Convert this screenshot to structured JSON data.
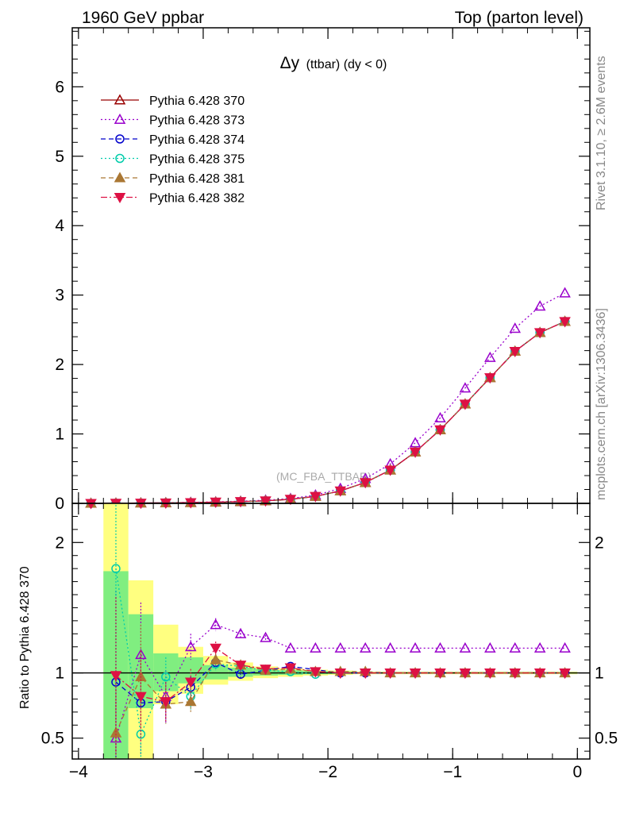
{
  "header": {
    "left": "1960 GeV ppbar",
    "right": "Top (parton level)"
  },
  "side": {
    "rivet": "Rivet 3.1.10, ≥ 2.6M events",
    "mcplots": "mcplots.cern.ch [arXiv:1306.3436]"
  },
  "chart_data": [
    {
      "type": "line",
      "title": "Δy (ttbar) (dy < 0)",
      "title_main": "Δy",
      "title_sub": "(ttbar) (dy < 0)",
      "watermark": "(MC_FBA_TTBAR)",
      "xlim": [
        -4.05,
        0.1
      ],
      "ylim": [
        0,
        6.85
      ],
      "yticks": [
        0,
        1,
        2,
        3,
        4,
        5,
        6
      ],
      "yticklabels": [
        "0",
        "1",
        "2",
        "3",
        "4",
        "5",
        "6"
      ],
      "legend_position": "top-left",
      "x": [
        -3.9,
        -3.7,
        -3.5,
        -3.3,
        -3.1,
        -2.9,
        -2.7,
        -2.5,
        -2.3,
        -2.1,
        -1.9,
        -1.7,
        -1.5,
        -1.3,
        -1.1,
        -0.9,
        -0.7,
        -0.5,
        -0.3,
        -0.1
      ],
      "series": [
        {
          "name": "Pythia 6.428 370",
          "color": "#990000",
          "marker": "triangle-open",
          "dash": "",
          "values": [
            0.0,
            0.002,
            0.005,
            0.008,
            0.012,
            0.016,
            0.024,
            0.036,
            0.058,
            0.1,
            0.18,
            0.3,
            0.48,
            0.74,
            1.06,
            1.43,
            1.81,
            2.19,
            2.46,
            2.62
          ]
        },
        {
          "name": "Pythia 6.428 373",
          "color": "#9900cc",
          "marker": "triangle-open",
          "dash": "2,3",
          "values": [
            0.0,
            0.002,
            0.006,
            0.008,
            0.014,
            0.022,
            0.031,
            0.046,
            0.069,
            0.119,
            0.214,
            0.356,
            0.567,
            0.871,
            1.23,
            1.66,
            2.1,
            2.52,
            2.84,
            3.03
          ]
        },
        {
          "name": "Pythia 6.428 374",
          "color": "#0000cc",
          "marker": "circle-open",
          "dash": "6,4",
          "values": [
            0.0,
            0.002,
            0.004,
            0.006,
            0.011,
            0.017,
            0.024,
            0.037,
            0.06,
            0.1,
            0.18,
            0.3,
            0.48,
            0.74,
            1.06,
            1.43,
            1.81,
            2.19,
            2.46,
            2.62
          ]
        },
        {
          "name": "Pythia 6.428 375",
          "color": "#00ccaa",
          "marker": "circle-open",
          "dash": "2,3",
          "values": [
            0.0,
            0.004,
            0.003,
            0.008,
            0.01,
            0.017,
            0.025,
            0.037,
            0.059,
            0.099,
            0.18,
            0.3,
            0.48,
            0.74,
            1.06,
            1.43,
            1.81,
            2.19,
            2.46,
            2.62
          ]
        },
        {
          "name": "Pythia 6.428 381",
          "color": "#aa7733",
          "marker": "triangle-filled",
          "dash": "6,4",
          "values": [
            0.0,
            0.001,
            0.005,
            0.006,
            0.009,
            0.018,
            0.026,
            0.037,
            0.059,
            0.1,
            0.18,
            0.3,
            0.48,
            0.74,
            1.06,
            1.43,
            1.81,
            2.19,
            2.46,
            2.62
          ]
        },
        {
          "name": "Pythia 6.428 382",
          "color": "#dd1144",
          "marker": "triangle-down-filled",
          "dash": "8,3,2,3",
          "values": [
            0.0,
            0.002,
            0.004,
            0.006,
            0.011,
            0.019,
            0.026,
            0.037,
            0.06,
            0.101,
            0.18,
            0.3,
            0.48,
            0.74,
            1.06,
            1.43,
            1.81,
            2.19,
            2.46,
            2.62
          ]
        }
      ]
    },
    {
      "type": "line",
      "ylabel": "Ratio to Pythia 6.428 370",
      "xlim": [
        -4.05,
        0.1
      ],
      "ylim": [
        0.34,
        2.3
      ],
      "xticks": [
        -4,
        -3,
        -2,
        -1,
        0
      ],
      "xticklabels": [
        "−4",
        "−3",
        "−2",
        "−1",
        "0"
      ],
      "yticks": [
        0.5,
        1,
        2
      ],
      "yticklabels": [
        "0.5",
        "1",
        "2"
      ],
      "bands": [
        {
          "x0": -3.8,
          "x1": -3.6,
          "green": [
            0.34,
            1.78
          ],
          "yellow": [
            0.34,
            2.3
          ]
        },
        {
          "x0": -3.6,
          "x1": -3.4,
          "green": [
            0.73,
            1.45
          ],
          "yellow": [
            0.34,
            1.71
          ]
        },
        {
          "x0": -3.4,
          "x1": -3.2,
          "green": [
            0.86,
            1.15
          ],
          "yellow": [
            0.76,
            1.37
          ]
        },
        {
          "x0": -3.2,
          "x1": -3.0,
          "green": [
            0.92,
            1.12
          ],
          "yellow": [
            0.84,
            1.2
          ]
        },
        {
          "x0": -3.0,
          "x1": -2.8,
          "green": [
            0.95,
            1.06
          ],
          "yellow": [
            0.91,
            1.13
          ]
        },
        {
          "x0": -2.8,
          "x1": -2.6,
          "green": [
            0.97,
            1.04
          ],
          "yellow": [
            0.94,
            1.08
          ]
        },
        {
          "x0": -2.6,
          "x1": -2.4,
          "green": [
            0.98,
            1.03
          ],
          "yellow": [
            0.96,
            1.05
          ]
        },
        {
          "x0": -2.4,
          "x1": -2.2,
          "green": [
            0.985,
            1.02
          ],
          "yellow": [
            0.97,
            1.035
          ]
        },
        {
          "x0": -2.2,
          "x1": -2.0,
          "green": [
            0.99,
            1.015
          ],
          "yellow": [
            0.98,
            1.025
          ]
        },
        {
          "x0": -2.0,
          "x1": -1.8,
          "green": [
            0.992,
            1.01
          ],
          "yellow": [
            0.985,
            1.018
          ]
        },
        {
          "x0": -1.8,
          "x1": -0.0,
          "green": [
            0.995,
            1.005
          ],
          "yellow": [
            0.99,
            1.01
          ]
        }
      ],
      "x": [
        -3.7,
        -3.5,
        -3.3,
        -3.1,
        -2.9,
        -2.7,
        -2.5,
        -2.3,
        -2.1,
        -1.9,
        -1.7,
        -1.5,
        -1.3,
        -1.1,
        -0.9,
        -0.7,
        -0.5,
        -0.3,
        -0.1
      ],
      "series": [
        {
          "name": "Pythia 6.428 373",
          "color": "#9900cc",
          "marker": "triangle-open",
          "dash": "2,3",
          "values": [
            0.5,
            1.14,
            0.82,
            1.2,
            1.37,
            1.3,
            1.27,
            1.19,
            1.19,
            1.19,
            1.19,
            1.19,
            1.19,
            1.19,
            1.19,
            1.19,
            1.19,
            1.19,
            1.19
          ],
          "err": [
            0.5,
            0.4,
            0.2,
            0.1,
            0.05,
            0.03,
            0.02,
            0.0,
            0.0,
            0.0,
            0.0,
            0.0,
            0.0,
            0.0,
            0.0,
            0.0,
            0.0,
            0.0,
            0.0
          ]
        },
        {
          "name": "Pythia 6.428 374",
          "color": "#0000cc",
          "marker": "circle-open",
          "dash": "6,4",
          "values": [
            0.93,
            0.77,
            0.78,
            0.89,
            1.08,
            0.99,
            1.02,
            1.05,
            null,
            1.0,
            1.0,
            1.0,
            1.0,
            1.0,
            1.0,
            1.0,
            1.0,
            1.0,
            1.0
          ],
          "err": [
            0.7,
            0.4,
            0.15,
            0.08,
            0.05,
            0.03,
            0.02,
            0.0,
            0.0,
            0.0,
            0.0,
            0.0,
            0.0,
            0.0,
            0.0,
            0.0,
            0.0,
            0.0,
            0.0
          ]
        },
        {
          "name": "Pythia 6.428 375",
          "color": "#00ccaa",
          "marker": "circle-open",
          "dash": "2,3",
          "values": [
            1.8,
            0.53,
            0.97,
            0.82,
            1.07,
            1.05,
            1.02,
            1.01,
            0.99,
            null,
            null,
            null,
            null,
            null,
            null,
            null,
            null,
            null,
            null
          ],
          "err": [
            1.0,
            0.4,
            0.15,
            0.1,
            0.05,
            0.03,
            0.02,
            0.0,
            0.0,
            0.0,
            0.0,
            0.0,
            0.0,
            0.0,
            0.0,
            0.0,
            0.0,
            0.0,
            0.0
          ]
        },
        {
          "name": "Pythia 6.428 381",
          "color": "#aa7733",
          "marker": "triangle-filled",
          "dash": "6,4",
          "values": [
            0.54,
            0.97,
            0.76,
            0.78,
            1.1,
            1.06,
            1.02,
            1.03,
            1.01,
            1.01,
            1.01,
            1.0,
            1.0,
            1.0,
            1.0,
            1.0,
            1.0,
            1.0,
            1.0
          ],
          "err": [
            0.5,
            0.4,
            0.15,
            0.08,
            0.05,
            0.03,
            0.0,
            0.0,
            0.0,
            0.0,
            0.0,
            0.0,
            0.0,
            0.0,
            0.0,
            0.0,
            0.0,
            0.0,
            0.0
          ]
        },
        {
          "name": "Pythia 6.428 382",
          "color": "#dd1144",
          "marker": "triangle-down-filled",
          "dash": "8,3,2,3",
          "values": [
            0.98,
            0.82,
            0.78,
            0.93,
            1.19,
            1.06,
            1.03,
            1.04,
            1.01,
            1.0,
            1.0,
            1.0,
            1.0,
            1.0,
            1.0,
            1.0,
            1.0,
            1.0,
            1.0
          ],
          "err": [
            0.6,
            0.35,
            0.15,
            0.1,
            0.05,
            0.0,
            0.0,
            0.0,
            0.0,
            0.0,
            0.0,
            0.0,
            0.0,
            0.0,
            0.0,
            0.0,
            0.0,
            0.0,
            0.0
          ]
        }
      ]
    }
  ]
}
